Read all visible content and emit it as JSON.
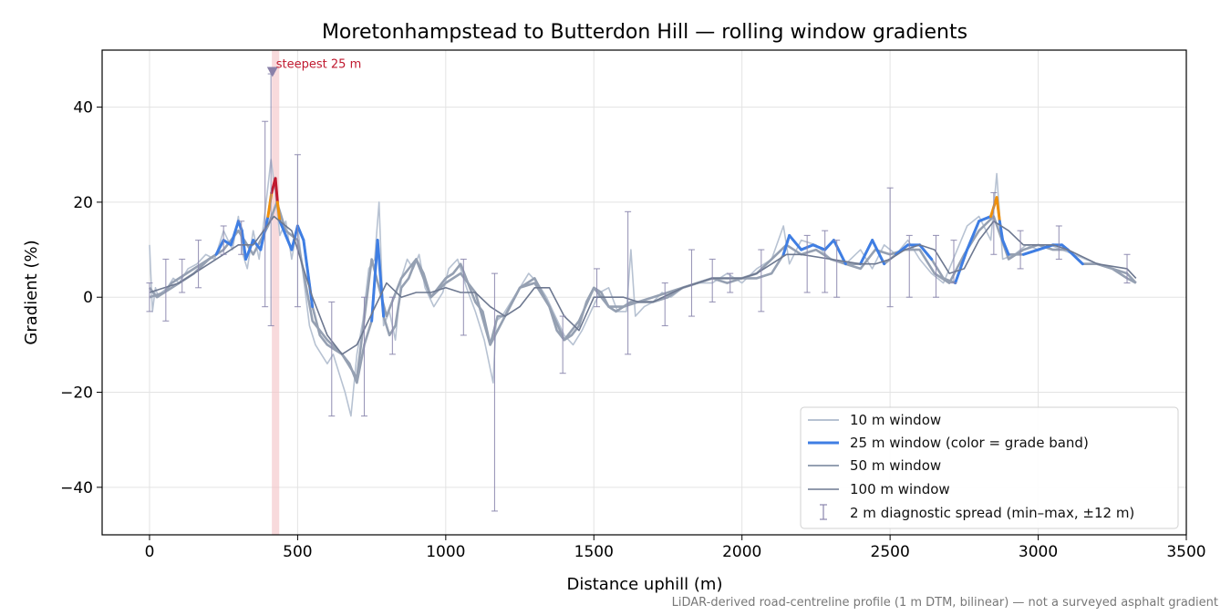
{
  "chart_data": {
    "type": "line",
    "title": "Moretonhampstead to Butterdon Hill — rolling window gradients",
    "xlabel": "Distance uphill (m)",
    "ylabel": "Gradient (%)",
    "xlim": [
      -160,
      3500
    ],
    "ylim": [
      -50,
      52
    ],
    "x_ticks": [
      0,
      500,
      1000,
      1500,
      2000,
      2500,
      3000,
      3500
    ],
    "y_ticks": [
      -40,
      -20,
      0,
      20,
      40
    ],
    "x_tick_labels": [
      "0",
      "500",
      "1000",
      "1500",
      "2000",
      "2500",
      "3000",
      "3500"
    ],
    "y_tick_labels": [
      "−40",
      "−20",
      "0",
      "20",
      "40"
    ],
    "grid": true,
    "legend_position": "lower right",
    "footnote": "LiDAR-derived road-centreline profile (1 m DTM, bilinear) — not a surveyed asphalt gradient",
    "annotation": {
      "text": "steepest 25 m",
      "x": 415,
      "y": 47.5,
      "band_x": [
        413,
        438
      ]
    },
    "colors": {
      "w10": "#b7c2d2",
      "w25_base": "#3f7ee3",
      "w25_orange": "#f0900a",
      "w25_red": "#c0192f",
      "w50": "#95a0b2",
      "w100": "#6d7890",
      "errorbar": "#8a86ad",
      "band": "#f4c6ca",
      "marker": "#8a80a8"
    },
    "grade_band_thresholds": {
      "orange": 20,
      "red": 25
    },
    "legend": [
      {
        "key": "w10",
        "label": "10 m window"
      },
      {
        "key": "w25",
        "label": "25 m window (color = grade band)"
      },
      {
        "key": "w50",
        "label": "50 m window"
      },
      {
        "key": "w100",
        "label": "100 m window"
      },
      {
        "key": "err",
        "label": "2 m diagnostic spread (min–max, ±12 m)"
      }
    ],
    "series": [
      {
        "name": "100 m window",
        "x": [
          0,
          100,
          200,
          300,
          350,
          420,
          480,
          550,
          600,
          650,
          700,
          800,
          850,
          900,
          950,
          1000,
          1050,
          1100,
          1150,
          1200,
          1250,
          1300,
          1350,
          1400,
          1450,
          1500,
          1550,
          1600,
          1650,
          1700,
          1800,
          1900,
          2000,
          2050,
          2100,
          2150,
          2200,
          2300,
          2400,
          2450,
          2500,
          2550,
          2600,
          2650,
          2700,
          2750,
          2800,
          2850,
          2900,
          2950,
          3000,
          3050,
          3100,
          3200,
          3300,
          3330
        ],
        "y": [
          1,
          3,
          7,
          11,
          11,
          17,
          14,
          0,
          -8,
          -12,
          -10,
          3,
          0,
          1,
          1,
          2,
          1,
          1,
          -2,
          -4,
          -2,
          2,
          2,
          -4,
          -7,
          0,
          0,
          0,
          -1,
          -1,
          2,
          4,
          4,
          5,
          7,
          9,
          9,
          8,
          7,
          7,
          8,
          10,
          11,
          10,
          5,
          6,
          12,
          16,
          14,
          11,
          11,
          11,
          10,
          7,
          6,
          4
        ]
      },
      {
        "name": "50 m window",
        "x": [
          0,
          50,
          100,
          150,
          200,
          250,
          300,
          350,
          400,
          430,
          460,
          500,
          550,
          600,
          650,
          700,
          750,
          800,
          850,
          900,
          950,
          1000,
          1050,
          1100,
          1150,
          1200,
          1250,
          1300,
          1350,
          1400,
          1450,
          1500,
          1550,
          1600,
          1650,
          1700,
          1800,
          1900,
          2000,
          2050,
          2100,
          2150,
          2200,
          2250,
          2300,
          2350,
          2400,
          2450,
          2500,
          2550,
          2600,
          2650,
          2700,
          2750,
          2800,
          2850,
          2900,
          2950,
          3000,
          3050,
          3100,
          3150,
          3200,
          3250,
          3300,
          3330
        ],
        "y": [
          0,
          1,
          3,
          5,
          8,
          10,
          14,
          9,
          15,
          20,
          14,
          12,
          -5,
          -9,
          -12,
          -17,
          8,
          -4,
          4,
          8,
          0,
          3,
          5,
          1,
          -10,
          -4,
          2,
          3,
          -2,
          -9,
          -5,
          2,
          -2,
          -2,
          -1,
          0,
          2,
          4,
          4,
          5,
          8,
          11,
          9,
          10,
          8,
          7,
          6,
          10,
          9,
          10,
          10,
          5,
          3,
          9,
          14,
          17,
          8,
          10,
          11,
          10,
          10,
          7,
          7,
          6,
          5,
          3
        ]
      },
      {
        "name": "25 m window",
        "x": [
          0,
          25,
          50,
          75,
          100,
          125,
          150,
          175,
          200,
          225,
          250,
          275,
          300,
          312,
          325,
          350,
          375,
          400,
          412,
          425,
          432,
          440,
          460,
          480,
          500,
          520,
          550,
          575,
          600,
          625,
          650,
          675,
          700,
          725,
          750,
          770,
          790,
          810,
          830,
          850,
          875,
          900,
          925,
          950,
          975,
          1000,
          1025,
          1050,
          1075,
          1100,
          1125,
          1150,
          1175,
          1200,
          1225,
          1250,
          1275,
          1300,
          1325,
          1350,
          1375,
          1400,
          1425,
          1450,
          1475,
          1500,
          1525,
          1550,
          1575,
          1600,
          1625,
          1650,
          1675,
          1700,
          1750,
          1800,
          1850,
          1900,
          1950,
          2000,
          2050,
          2100,
          2140,
          2160,
          2200,
          2240,
          2280,
          2310,
          2350,
          2400,
          2440,
          2480,
          2520,
          2560,
          2600,
          2640,
          2680,
          2720,
          2760,
          2800,
          2840,
          2860,
          2870,
          2880,
          2900,
          2950,
          3000,
          3050,
          3080,
          3100,
          3150,
          3200,
          3250,
          3300,
          3330
        ],
        "y": [
          2,
          0,
          1,
          3,
          4,
          5,
          6,
          7,
          8,
          9,
          12,
          11,
          16,
          14,
          8,
          12,
          10,
          17,
          22,
          25,
          20,
          16,
          13,
          10,
          15,
          12,
          -2,
          -8,
          -10,
          -11,
          -12,
          -14,
          -18,
          -10,
          -5,
          12,
          -4,
          -8,
          -6,
          2,
          4,
          8,
          5,
          0,
          2,
          4,
          5,
          7,
          3,
          -1,
          -3,
          -10,
          -4,
          -4,
          -1,
          2,
          3,
          4,
          1,
          -2,
          -7,
          -9,
          -8,
          -6,
          -1,
          2,
          1,
          -2,
          -3,
          -2,
          -1,
          -1,
          -1,
          -1,
          0,
          2,
          3,
          4,
          3,
          4,
          4,
          5,
          9,
          13,
          10,
          11,
          10,
          12,
          7,
          7,
          12,
          7,
          9,
          11,
          11,
          8,
          4,
          3,
          10,
          16,
          17,
          21,
          16,
          12,
          9,
          9,
          10,
          11,
          11,
          10,
          7,
          7,
          6,
          4,
          3
        ]
      },
      {
        "name": "10 m window",
        "x": [
          0,
          10,
          20,
          30,
          40,
          60,
          80,
          100,
          130,
          160,
          190,
          220,
          250,
          280,
          300,
          315,
          330,
          350,
          370,
          390,
          410,
          425,
          440,
          460,
          480,
          500,
          520,
          540,
          560,
          580,
          600,
          620,
          640,
          660,
          680,
          700,
          720,
          740,
          760,
          775,
          790,
          810,
          830,
          850,
          870,
          890,
          910,
          930,
          960,
          990,
          1010,
          1040,
          1070,
          1100,
          1130,
          1160,
          1170,
          1190,
          1220,
          1250,
          1280,
          1310,
          1340,
          1370,
          1400,
          1430,
          1460,
          1490,
          1520,
          1550,
          1580,
          1610,
          1625,
          1640,
          1670,
          1700,
          1730,
          1760,
          1800,
          1850,
          1900,
          1950,
          2000,
          2050,
          2100,
          2140,
          2160,
          2200,
          2250,
          2300,
          2350,
          2400,
          2440,
          2480,
          2520,
          2560,
          2600,
          2640,
          2680,
          2720,
          2760,
          2800,
          2840,
          2860,
          2880,
          2920,
          2960,
          3000,
          3040,
          3080,
          3120,
          3160,
          3200,
          3250,
          3300,
          3330
        ],
        "y": [
          11,
          -3,
          2,
          0,
          1,
          2,
          4,
          3,
          6,
          7,
          9,
          8,
          14,
          10,
          17,
          9,
          6,
          14,
          8,
          18,
          29,
          22,
          13,
          16,
          8,
          15,
          4,
          -6,
          -10,
          -12,
          -14,
          -12,
          -16,
          -20,
          -25,
          -12,
          -5,
          6,
          8,
          20,
          -6,
          -3,
          -9,
          4,
          8,
          6,
          9,
          2,
          -2,
          1,
          6,
          8,
          2,
          -3,
          -9,
          -18,
          -5,
          -4,
          -1,
          2,
          5,
          3,
          0,
          -4,
          -8,
          -10,
          -7,
          -3,
          1,
          2,
          -3,
          -3,
          10,
          -4,
          -2,
          -1,
          1,
          0,
          2,
          3,
          3,
          5,
          3,
          6,
          8,
          15,
          7,
          12,
          11,
          8,
          7,
          10,
          6,
          11,
          9,
          12,
          8,
          5,
          3,
          9,
          15,
          17,
          12,
          26,
          8,
          9,
          11,
          10,
          11,
          10,
          9,
          8,
          7,
          6,
          5,
          3
        ]
      }
    ],
    "error_bars": [
      {
        "x": 0,
        "min": -3,
        "max": 3
      },
      {
        "x": 55,
        "min": -5,
        "max": 8
      },
      {
        "x": 110,
        "min": 1,
        "max": 8
      },
      {
        "x": 165,
        "min": 2,
        "max": 12
      },
      {
        "x": 250,
        "min": 9,
        "max": 15
      },
      {
        "x": 310,
        "min": 9,
        "max": 16
      },
      {
        "x": 390,
        "min": -2,
        "max": 37
      },
      {
        "x": 410,
        "min": -6,
        "max": 47
      },
      {
        "x": 500,
        "min": -2,
        "max": 30
      },
      {
        "x": 615,
        "min": -25,
        "max": -1
      },
      {
        "x": 725,
        "min": -25,
        "max": 0
      },
      {
        "x": 820,
        "min": -12,
        "max": 0
      },
      {
        "x": 1060,
        "min": -8,
        "max": 8
      },
      {
        "x": 1165,
        "min": -45,
        "max": 5
      },
      {
        "x": 1395,
        "min": -16,
        "max": -4
      },
      {
        "x": 1510,
        "min": -2,
        "max": 6
      },
      {
        "x": 1615,
        "min": -12,
        "max": 18
      },
      {
        "x": 1740,
        "min": -6,
        "max": 3
      },
      {
        "x": 1830,
        "min": -4,
        "max": 10
      },
      {
        "x": 1900,
        "min": -1,
        "max": 8
      },
      {
        "x": 1960,
        "min": 1,
        "max": 5
      },
      {
        "x": 2065,
        "min": -3,
        "max": 10
      },
      {
        "x": 2220,
        "min": 1,
        "max": 13
      },
      {
        "x": 2280,
        "min": 1,
        "max": 14
      },
      {
        "x": 2320,
        "min": 0,
        "max": 12
      },
      {
        "x": 2500,
        "min": -2,
        "max": 23
      },
      {
        "x": 2565,
        "min": 0,
        "max": 13
      },
      {
        "x": 2655,
        "min": 0,
        "max": 13
      },
      {
        "x": 2715,
        "min": 3,
        "max": 12
      },
      {
        "x": 2850,
        "min": 9,
        "max": 22
      },
      {
        "x": 2940,
        "min": 6,
        "max": 14
      },
      {
        "x": 3070,
        "min": 8,
        "max": 15
      },
      {
        "x": 3300,
        "min": 3,
        "max": 9
      }
    ]
  }
}
